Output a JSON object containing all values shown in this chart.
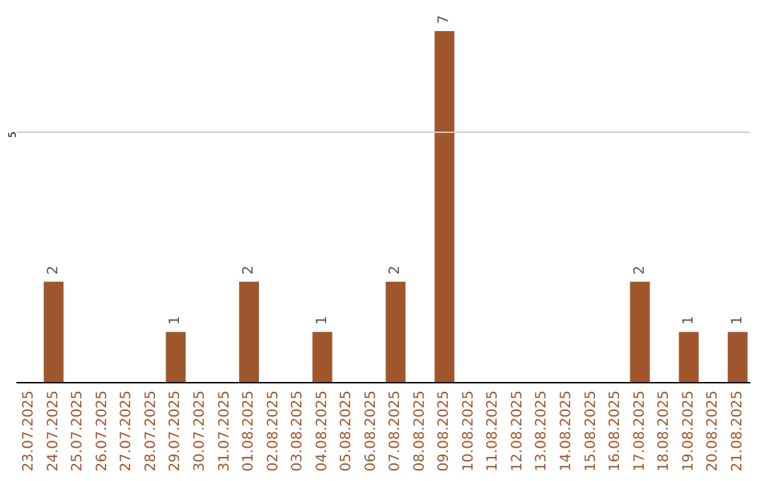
{
  "chart_data": {
    "type": "bar",
    "categories": [
      "23.07.2025",
      "24.07.2025",
      "25.07.2025",
      "26.07.2025",
      "27.07.2025",
      "28.07.2025",
      "29.07.2025",
      "30.07.2025",
      "31.07.2025",
      "01.08.2025",
      "02.08.2025",
      "03.08.2025",
      "04.08.2025",
      "05.08.2025",
      "06.08.2025",
      "07.08.2025",
      "08.08.2025",
      "09.08.2025",
      "10.08.2025",
      "11.08.2025",
      "12.08.2025",
      "13.08.2025",
      "14.08.2025",
      "15.08.2025",
      "16.08.2025",
      "17.08.2025",
      "18.08.2025",
      "19.08.2025",
      "20.08.2025",
      "21.08.2025"
    ],
    "values": [
      0,
      2,
      0,
      0,
      0,
      0,
      1,
      0,
      0,
      2,
      0,
      0,
      1,
      0,
      0,
      2,
      0,
      7,
      0,
      0,
      0,
      0,
      0,
      0,
      0,
      2,
      0,
      1,
      0,
      1
    ],
    "value_labels": [
      null,
      "2",
      null,
      null,
      null,
      null,
      "1",
      null,
      null,
      "2",
      null,
      null,
      "1",
      null,
      null,
      "2",
      null,
      "7",
      null,
      null,
      null,
      null,
      null,
      null,
      null,
      "2",
      null,
      "1",
      null,
      "1"
    ],
    "color": "#a0562c",
    "ref_lines": [
      {
        "axis": "y",
        "value": 5,
        "label": "5",
        "color": "#cccccc"
      }
    ]
  }
}
